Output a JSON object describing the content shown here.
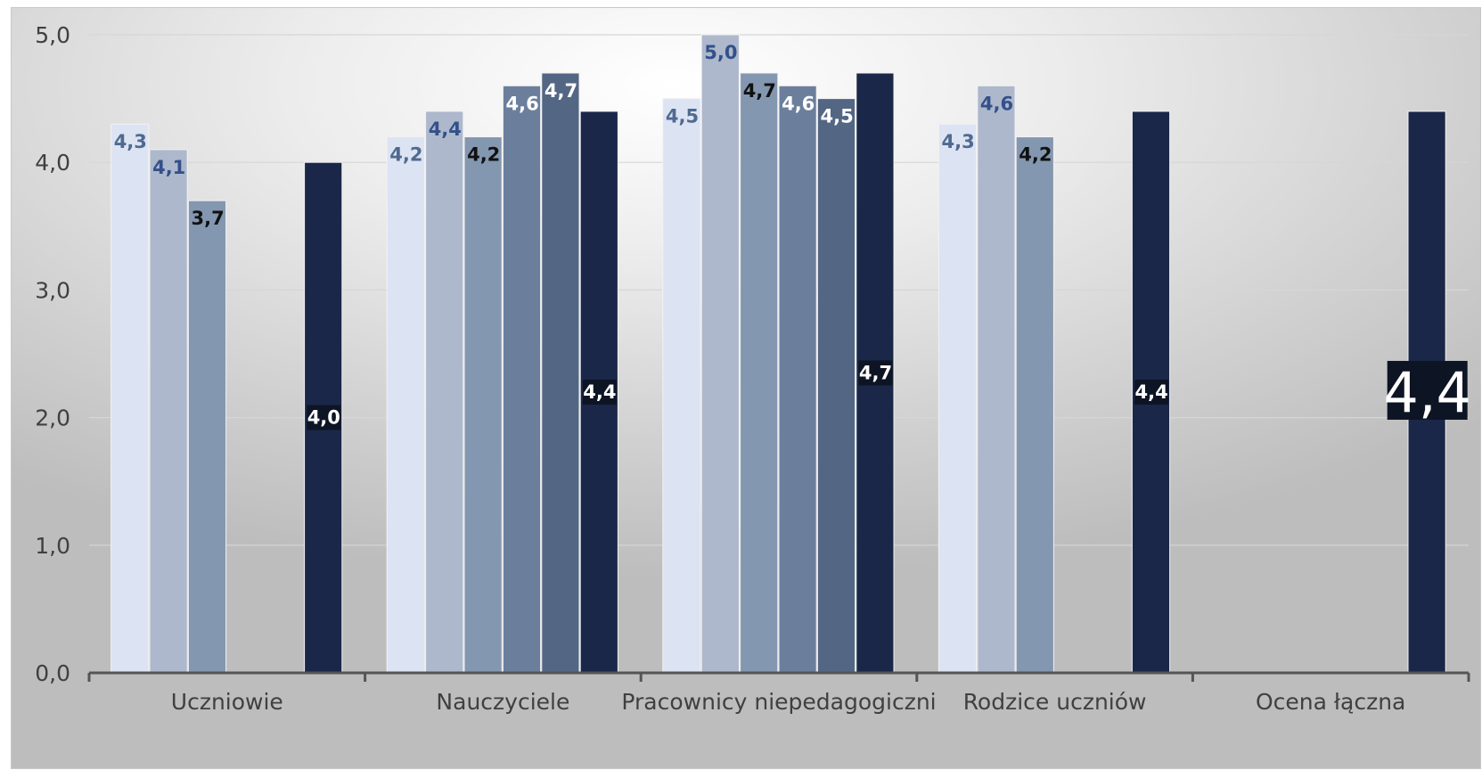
{
  "chart_data": {
    "type": "bar",
    "categories": [
      "Uczniowie",
      "Nauczyciele",
      "Pracownicy niepedagogiczni",
      "Rodzice uczniów",
      "Ocena łączna"
    ],
    "series": [
      {
        "values": [
          4.3,
          4.2,
          4.5,
          4.3,
          null
        ],
        "color": "#dce3f3"
      },
      {
        "values": [
          4.1,
          4.4,
          5.0,
          4.6,
          null
        ],
        "color": "#adb8cc"
      },
      {
        "values": [
          3.7,
          4.2,
          4.7,
          4.2,
          null
        ],
        "color": "#8497b0"
      },
      {
        "values": [
          null,
          4.6,
          4.6,
          null,
          null
        ],
        "color": "#6b7f9d"
      },
      {
        "values": [
          null,
          4.7,
          4.5,
          null,
          null
        ],
        "color": "#536684"
      },
      {
        "values": [
          4.0,
          4.4,
          4.7,
          4.4,
          4.4
        ],
        "color": "#1a2748"
      }
    ],
    "data_labels": [
      [
        "4,3",
        "4,2",
        "4,5",
        "4,3",
        ""
      ],
      [
        "4,1",
        "4,4",
        "5,0",
        "4,6",
        ""
      ],
      [
        "3,7",
        "4,2",
        "4,7",
        "4,2",
        ""
      ],
      [
        "",
        "4,6",
        "4,6",
        "",
        ""
      ],
      [
        "",
        "4,7",
        "4,5",
        "",
        ""
      ],
      [
        "4,0",
        "4,4",
        "4,7",
        "4,4",
        "4,4"
      ]
    ],
    "label_colors": [
      "#4f6a8f",
      "#34508a",
      "#111111",
      "#ffffff",
      "#ffffff",
      "#ffffff"
    ],
    "ylim": [
      0,
      5
    ],
    "y_ticks": [
      "0,0",
      "1,0",
      "2,0",
      "3,0",
      "4,0",
      "5,0"
    ],
    "grid": true,
    "legend": "none",
    "title": "",
    "xlabel": "",
    "ylabel": ""
  }
}
